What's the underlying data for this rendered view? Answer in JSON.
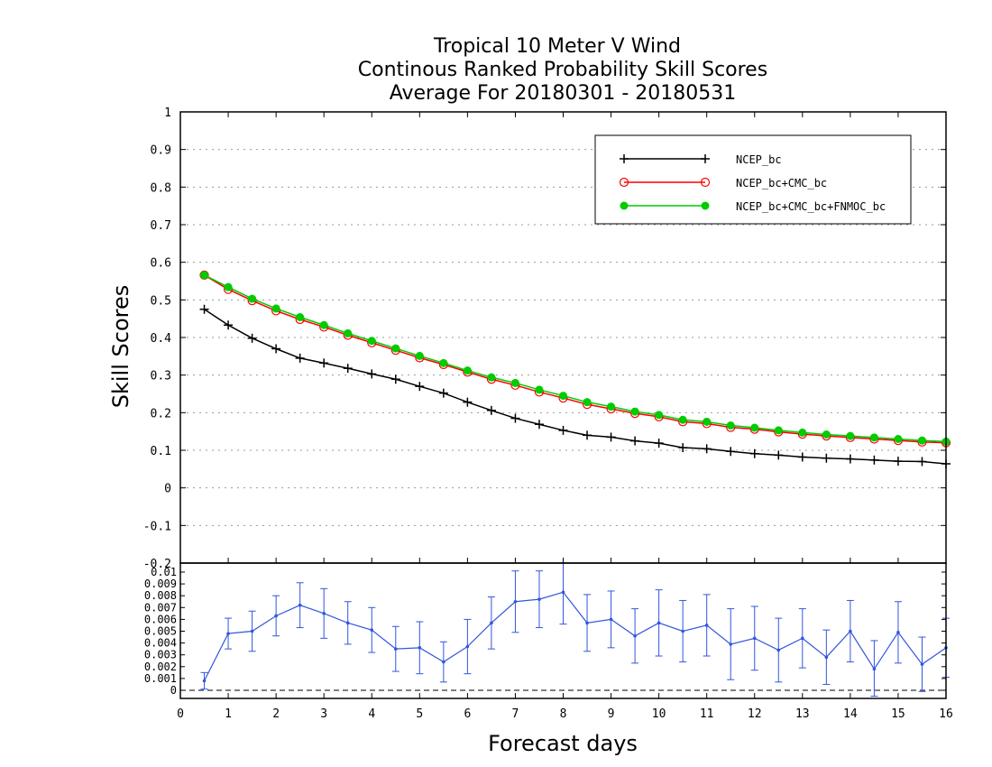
{
  "chart_data": {
    "type": "line",
    "title": [
      "Tropical 10 Meter V Wind",
      "Continous Ranked Probability Skill Scores",
      "Average For 20180301 - 20180531"
    ],
    "xlabel": "Forecast days",
    "ylabel": "Skill Scores",
    "xlim": [
      0,
      16
    ],
    "xticks": [
      "0",
      "1",
      "2",
      "3",
      "4",
      "5",
      "6",
      "7",
      "8",
      "9",
      "10",
      "11",
      "12",
      "13",
      "14",
      "15",
      "16"
    ],
    "ylim": [
      -0.2,
      1
    ],
    "yticks": [
      "-0.2",
      "-0.1",
      "0",
      "0.1",
      "0.2",
      "0.3",
      "0.4",
      "0.5",
      "0.6",
      "0.7",
      "0.8",
      "0.9",
      "1"
    ],
    "grid": true,
    "legend_position": "top-right",
    "x": [
      0.5,
      1,
      1.5,
      2,
      2.5,
      3,
      3.5,
      4,
      4.5,
      5,
      5.5,
      6,
      6.5,
      7,
      7.5,
      8,
      8.5,
      9,
      9.5,
      10,
      10.5,
      11,
      11.5,
      12,
      12.5,
      13,
      13.5,
      14,
      14.5,
      15,
      15.5,
      16
    ],
    "series": [
      {
        "name": "NCEP_bc",
        "color": "#000000",
        "marker": "plus",
        "values": [
          0.475,
          0.433,
          0.398,
          0.37,
          0.345,
          0.332,
          0.318,
          0.303,
          0.289,
          0.27,
          0.252,
          0.228,
          0.206,
          0.185,
          0.169,
          0.153,
          0.14,
          0.135,
          0.125,
          0.119,
          0.107,
          0.104,
          0.097,
          0.091,
          0.087,
          0.082,
          0.079,
          0.077,
          0.074,
          0.071,
          0.07,
          0.064
        ]
      },
      {
        "name": "NCEP_bc+CMC_bc",
        "color": "#ff0000",
        "marker": "open-circle",
        "values": [
          0.566,
          0.528,
          0.498,
          0.471,
          0.448,
          0.428,
          0.406,
          0.386,
          0.366,
          0.346,
          0.328,
          0.308,
          0.289,
          0.273,
          0.255,
          0.239,
          0.222,
          0.21,
          0.198,
          0.189,
          0.176,
          0.171,
          0.161,
          0.156,
          0.149,
          0.143,
          0.138,
          0.134,
          0.13,
          0.126,
          0.122,
          0.12
        ]
      },
      {
        "name": "NCEP_bc+CMC_bc+FNMOC_bc",
        "color": "#00cc00",
        "marker": "filled-circle",
        "values": [
          0.566,
          0.534,
          0.503,
          0.477,
          0.454,
          0.433,
          0.411,
          0.391,
          0.371,
          0.351,
          0.332,
          0.312,
          0.294,
          0.279,
          0.261,
          0.245,
          0.228,
          0.216,
          0.203,
          0.194,
          0.181,
          0.176,
          0.166,
          0.16,
          0.153,
          0.147,
          0.142,
          0.138,
          0.134,
          0.13,
          0.126,
          0.123
        ]
      }
    ],
    "difference_panel": {
      "ylim": [
        0,
        0.01
      ],
      "yticks": [
        "0",
        "0.001",
        "0.002",
        "0.003",
        "0.004",
        "0.005",
        "0.006",
        "0.007",
        "0.008",
        "0.009",
        "0.01"
      ],
      "color": "#3355dd",
      "reference_line": 0,
      "x": [
        0.5,
        1,
        1.5,
        2,
        2.5,
        3,
        3.5,
        4,
        4.5,
        5,
        5.5,
        6,
        6.5,
        7,
        7.5,
        8,
        8.5,
        9,
        9.5,
        10,
        10.5,
        11,
        11.5,
        12,
        12.5,
        13,
        13.5,
        14,
        14.5,
        15,
        15.5,
        16
      ],
      "values": [
        0.0008,
        0.0048,
        0.005,
        0.0063,
        0.0072,
        0.0065,
        0.0057,
        0.0051,
        0.0035,
        0.0036,
        0.0024,
        0.0037,
        0.0057,
        0.0075,
        0.0077,
        0.0083,
        0.0057,
        0.006,
        0.0046,
        0.0057,
        0.005,
        0.0055,
        0.0039,
        0.0044,
        0.0034,
        0.0044,
        0.0028,
        0.005,
        0.0018,
        0.0049,
        0.0022,
        0.0036
      ],
      "errors": [
        0.0007,
        0.0013,
        0.0017,
        0.0017,
        0.0019,
        0.0021,
        0.0018,
        0.0019,
        0.0019,
        0.0022,
        0.0017,
        0.0023,
        0.0022,
        0.0026,
        0.0024,
        0.0027,
        0.0024,
        0.0024,
        0.0023,
        0.0028,
        0.0026,
        0.0026,
        0.003,
        0.0027,
        0.0027,
        0.0025,
        0.0023,
        0.0026,
        0.0024,
        0.0026,
        0.0023,
        0.0025
      ]
    }
  }
}
